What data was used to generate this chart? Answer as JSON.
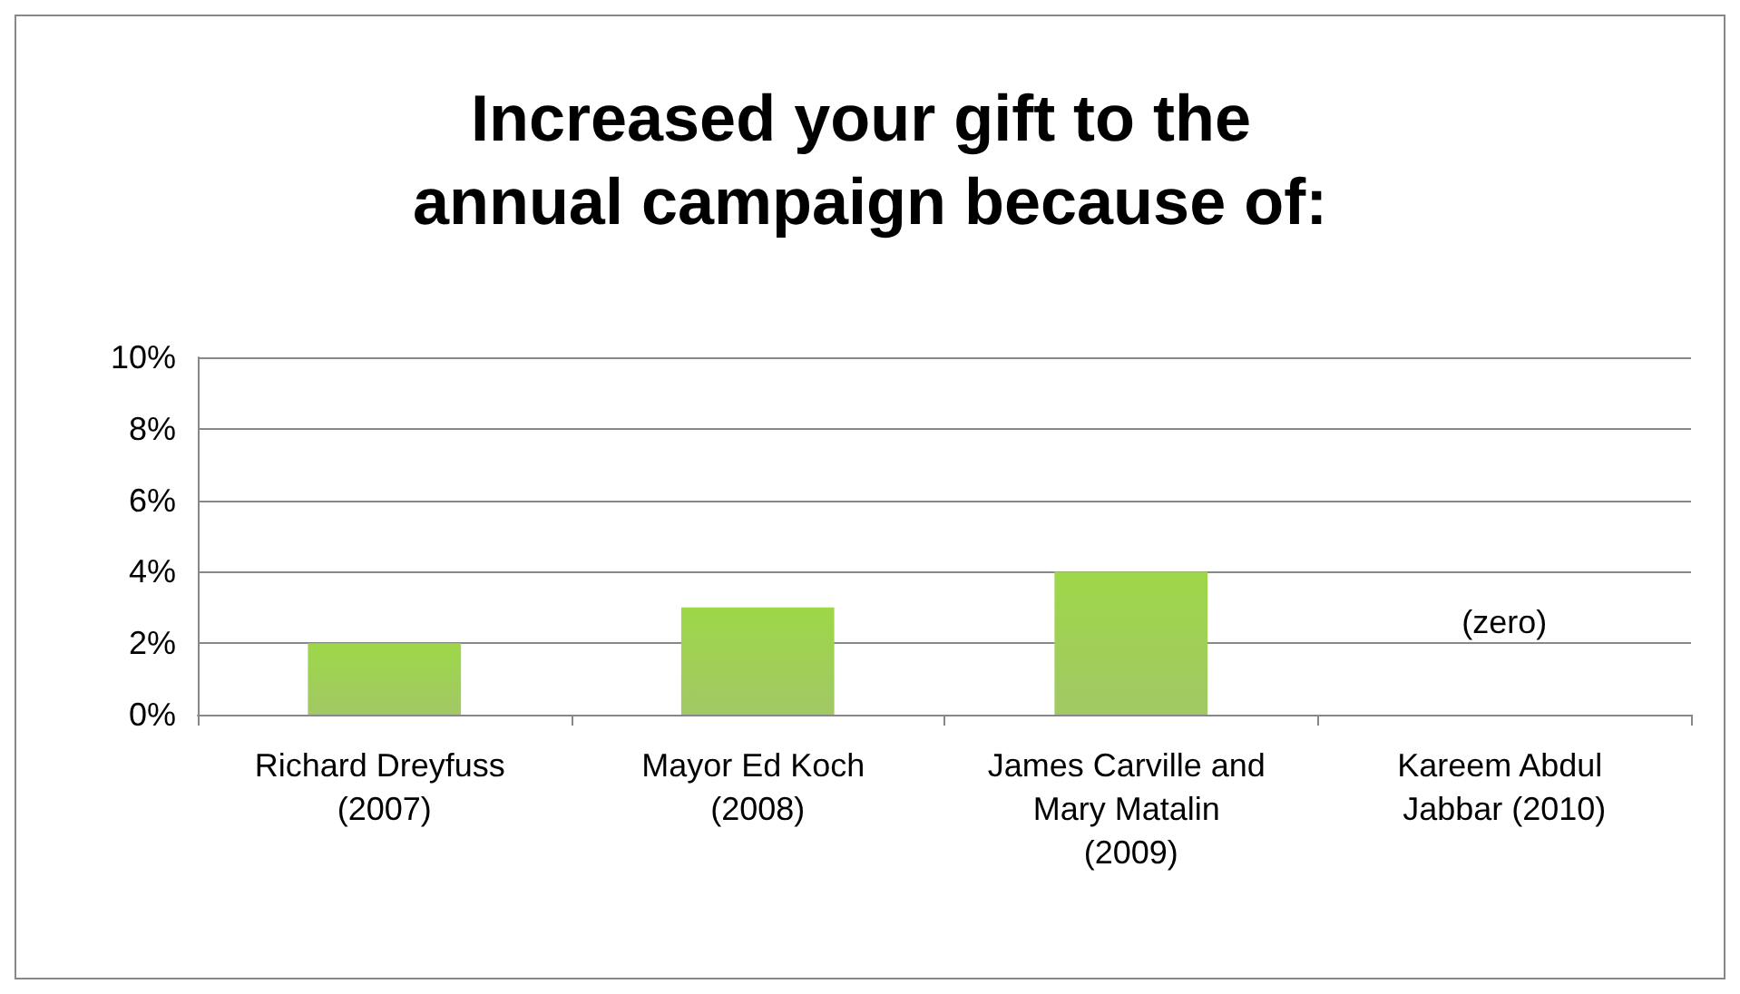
{
  "chart_data": {
    "type": "bar",
    "title": "Increased your gift to the annual campaign because of:",
    "categories": [
      "Richard Dreyfuss (2007)",
      "Mayor Ed Koch (2008)",
      "James Carville and Mary Matalin (2009)",
      "Kareem Abdul Jabbar (2010)"
    ],
    "values": [
      2,
      3,
      4,
      0
    ],
    "color": "#8abb3f",
    "ylim": [
      0,
      10
    ],
    "yticks": [
      {
        "value": 0,
        "label": "0%"
      },
      {
        "value": 2,
        "label": "2%"
      },
      {
        "value": 4,
        "label": "4%"
      },
      {
        "value": 6,
        "label": "6%"
      },
      {
        "value": 8,
        "label": "8%"
      },
      {
        "value": 10,
        "label": "10%"
      }
    ],
    "grid": "y",
    "annotations": [
      {
        "text": "(zero)",
        "x": "Kareem Abdul Jabbar (2010)",
        "y": 0
      }
    ]
  }
}
